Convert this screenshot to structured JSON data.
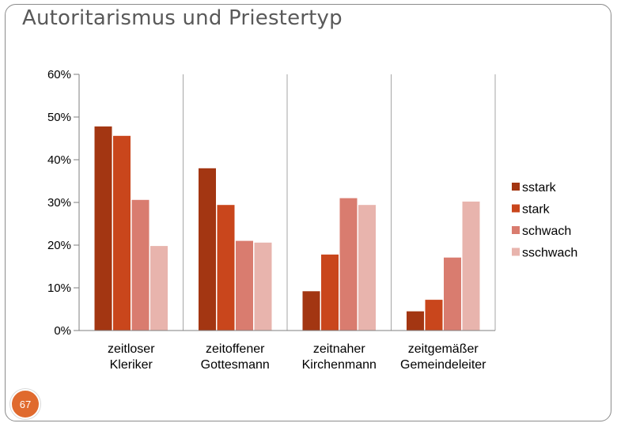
{
  "slide": {
    "title": "Autoritarismus und Priestertyp",
    "page_number": "67"
  },
  "chart_data": {
    "type": "bar",
    "title": "",
    "xlabel": "",
    "ylabel": "",
    "ylim": [
      0,
      0.6
    ],
    "yticks": [
      "0%",
      "10%",
      "20%",
      "30%",
      "40%",
      "50%",
      "60%"
    ],
    "grid": "vertical category separators",
    "legend_position": "right",
    "categories": [
      [
        "zeitloser",
        "Kleriker"
      ],
      [
        "zeitoffener",
        "Gottesmann"
      ],
      [
        "zeitnaher",
        "Kirchenmann"
      ],
      [
        "zeitgemäßer",
        "Gemeindeleiter"
      ]
    ],
    "series": [
      {
        "name": "sstark",
        "color": "#a33612",
        "values": [
          0.478,
          0.38,
          0.092,
          0.045
        ]
      },
      {
        "name": "stark",
        "color": "#c9461c",
        "values": [
          0.456,
          0.294,
          0.178,
          0.072
        ]
      },
      {
        "name": "schwach",
        "color": "#d97c6f",
        "values": [
          0.306,
          0.21,
          0.31,
          0.171
        ]
      },
      {
        "name": "sschwach",
        "color": "#e8b4ad",
        "values": [
          0.198,
          0.206,
          0.294,
          0.302
        ]
      }
    ]
  }
}
